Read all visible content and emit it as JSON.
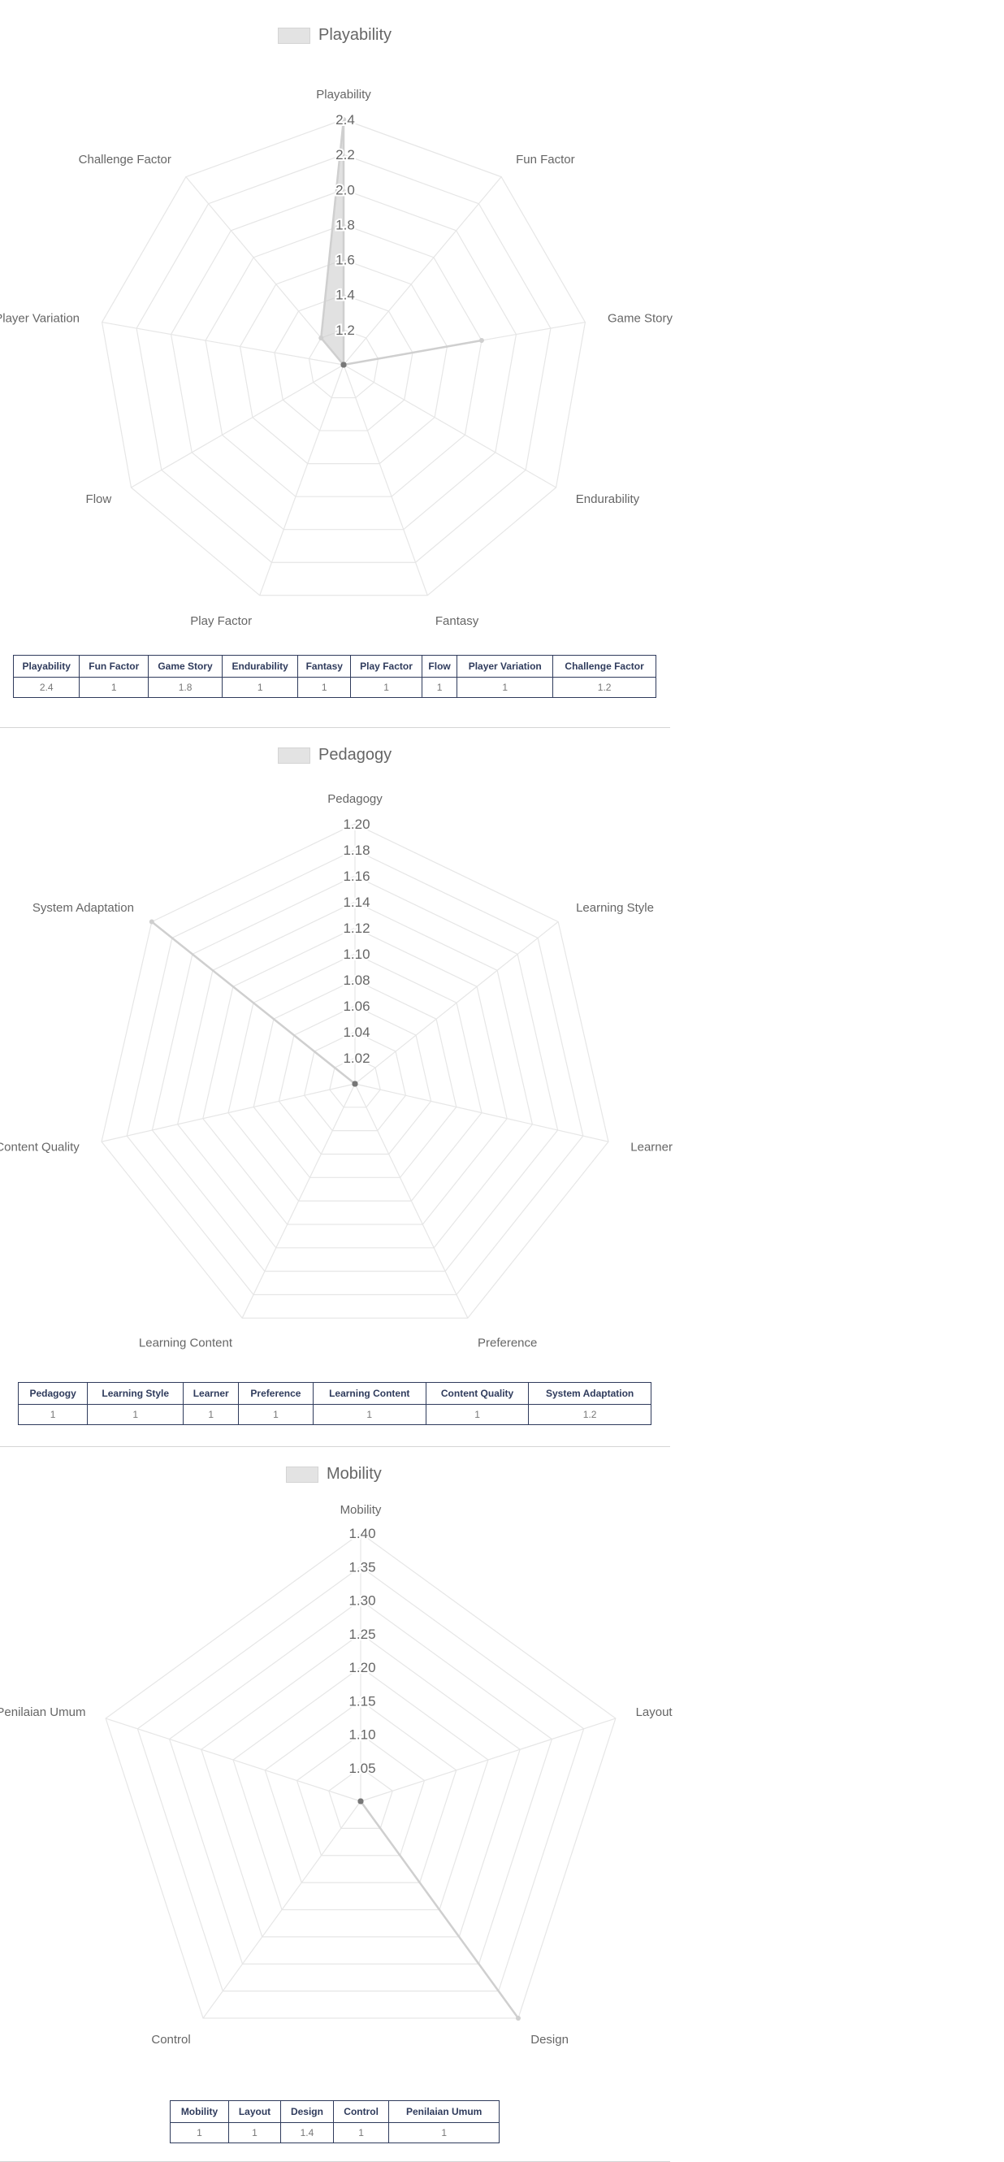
{
  "chart_data": [
    {
      "type": "radar",
      "title": "",
      "legend": "top",
      "series": [
        {
          "name": "Playability",
          "color": "#c9c9c9"
        }
      ],
      "axes": [
        "Playability",
        "Fun Factor",
        "Game Story",
        "Endurability",
        "Fantasy",
        "Play Factor",
        "Flow",
        "Player Variation",
        "Challenge Factor"
      ],
      "values": [
        2.4,
        1,
        1.8,
        1,
        1,
        1,
        1,
        1,
        1.2
      ],
      "ticks": [
        "1.2",
        "1.4",
        "1.6",
        "1.8",
        "2.0",
        "2.2",
        "2.4"
      ],
      "rmin": 1.0,
      "rmax": 2.4,
      "tick_count": 7,
      "grid": true,
      "table": {
        "headers": [
          "Playability",
          "Fun Factor",
          "Game Story",
          "Endurability",
          "Fantasy",
          "Play Factor",
          "Flow",
          "Player Variation",
          "Challenge Factor"
        ],
        "values": [
          "2.4",
          "1",
          "1.8",
          "1",
          "1",
          "1",
          "1",
          "1",
          "1.2"
        ]
      }
    },
    {
      "type": "radar",
      "title": "",
      "legend": "top",
      "series": [
        {
          "name": "Pedagogy",
          "color": "#c9c9c9"
        }
      ],
      "axes": [
        "Pedagogy",
        "Learning Style",
        "Learner",
        "Preference",
        "Learning Content",
        "Content Quality",
        "System Adaptation"
      ],
      "values": [
        1,
        1,
        1,
        1,
        1,
        1,
        1.2
      ],
      "ticks": [
        "1.02",
        "1.04",
        "1.06",
        "1.08",
        "1.10",
        "1.12",
        "1.14",
        "1.16",
        "1.18",
        "1.20"
      ],
      "rmin": 1.0,
      "rmax": 1.2,
      "tick_count": 10,
      "grid": true,
      "table": {
        "headers": [
          "Pedagogy",
          "Learning Style",
          "Learner",
          "Preference",
          "Learning Content",
          "Content Quality",
          "System Adaptation"
        ],
        "values": [
          "1",
          "1",
          "1",
          "1",
          "1",
          "1",
          "1.2"
        ]
      }
    },
    {
      "type": "radar",
      "title": "",
      "legend": "top",
      "series": [
        {
          "name": "Mobility",
          "color": "#c9c9c9"
        }
      ],
      "axes": [
        "Mobility",
        "Layout",
        "Design",
        "Control",
        "Penilaian Umum"
      ],
      "values": [
        1,
        1,
        1.4,
        1,
        1
      ],
      "ticks": [
        "1.05",
        "1.10",
        "1.15",
        "1.20",
        "1.25",
        "1.30",
        "1.35",
        "1.40"
      ],
      "rmin": 1.0,
      "rmax": 1.4,
      "tick_count": 8,
      "grid": true,
      "table": {
        "headers": [
          "Mobility",
          "Layout",
          "Design",
          "Control",
          "Penilaian Umum"
        ],
        "values": [
          "1",
          "1",
          "1.4",
          "1",
          "1"
        ]
      }
    }
  ]
}
